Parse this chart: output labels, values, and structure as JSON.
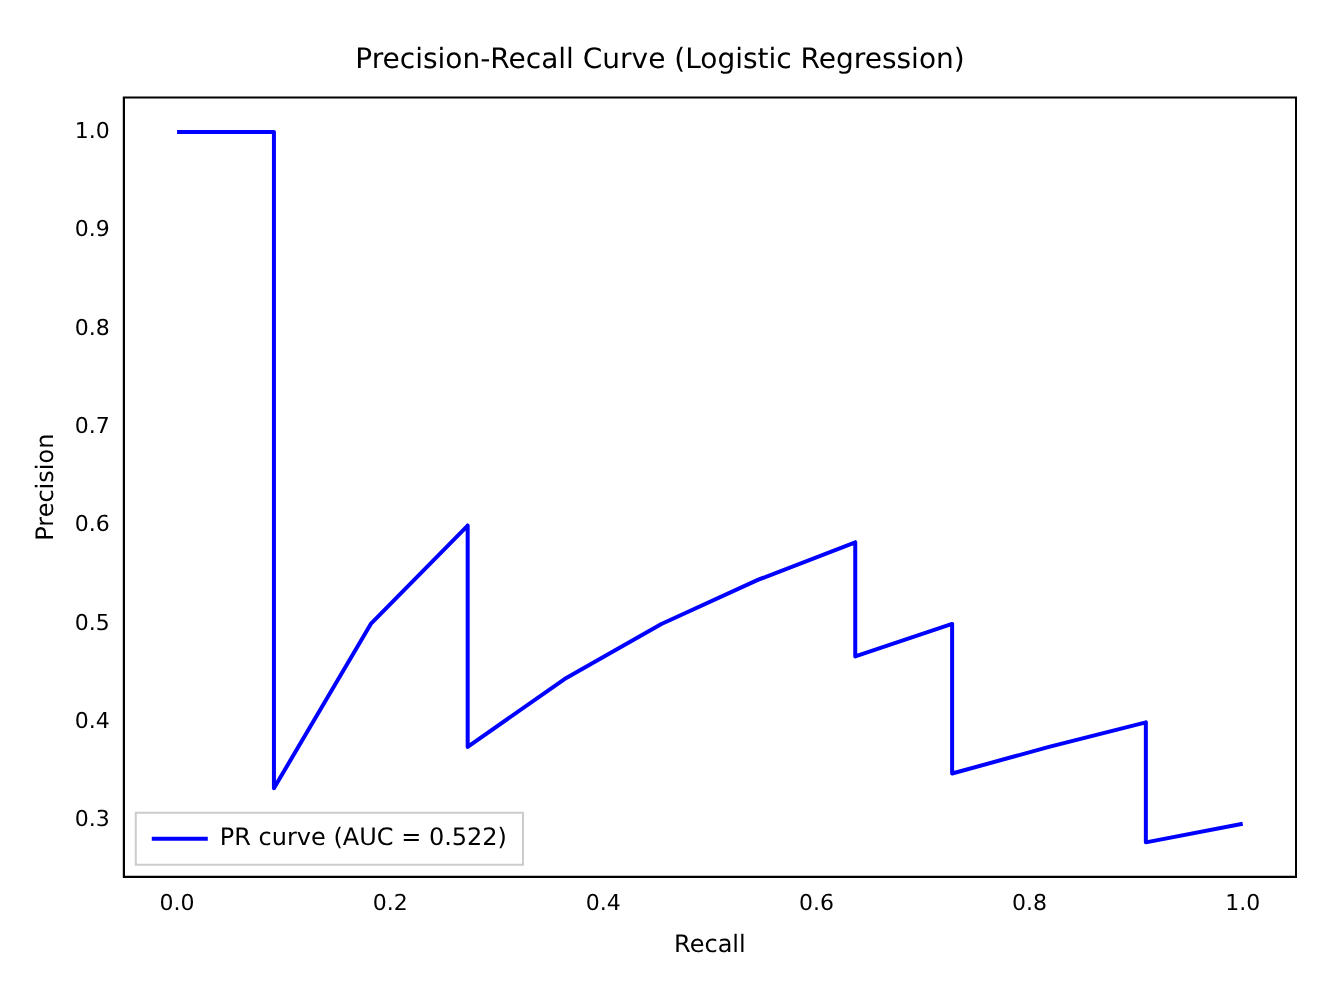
{
  "chart_data": {
    "type": "line",
    "title": "Precision-Recall Curve (Logistic Regression)",
    "xlabel": "Recall",
    "ylabel": "Precision",
    "x": [
      0,
      0.0909,
      0.0909,
      0.1818,
      0.2727,
      0.2727,
      0.3636,
      0.4545,
      0.5455,
      0.6364,
      0.6364,
      0.7273,
      0.7273,
      0.8182,
      0.9091,
      0.9091,
      1.0
    ],
    "series": [
      {
        "name": "PR curve (AUC = 0.522)",
        "color": "#0000ff",
        "values": [
          1.0,
          1.0,
          0.333,
          0.5,
          0.6,
          0.375,
          0.444,
          0.5,
          0.545,
          0.583,
          0.467,
          0.5,
          0.348,
          0.375,
          0.4,
          0.278,
          0.297
        ]
      }
    ],
    "xlim": [
      -0.05,
      1.05
    ],
    "ylim": [
      0.243,
      1.035
    ],
    "xticks": [
      {
        "value": 0,
        "label": "0.0"
      },
      {
        "value": 0.2,
        "label": "0.2"
      },
      {
        "value": 0.4,
        "label": "0.4"
      },
      {
        "value": 0.6,
        "label": "0.6"
      },
      {
        "value": 0.8,
        "label": "0.8"
      },
      {
        "value": 1,
        "label": "1.0"
      }
    ],
    "yticks": [
      {
        "value": 0.3,
        "label": "0.3"
      },
      {
        "value": 0.4,
        "label": "0.4"
      },
      {
        "value": 0.5,
        "label": "0.5"
      },
      {
        "value": 0.6,
        "label": "0.6"
      },
      {
        "value": 0.7,
        "label": "0.7"
      },
      {
        "value": 0.8,
        "label": "0.8"
      },
      {
        "value": 0.9,
        "label": "0.9"
      },
      {
        "value": 1,
        "label": "1.0"
      }
    ],
    "grid": false,
    "legend": "bottom left",
    "marker": "none",
    "line_style": "solid"
  }
}
